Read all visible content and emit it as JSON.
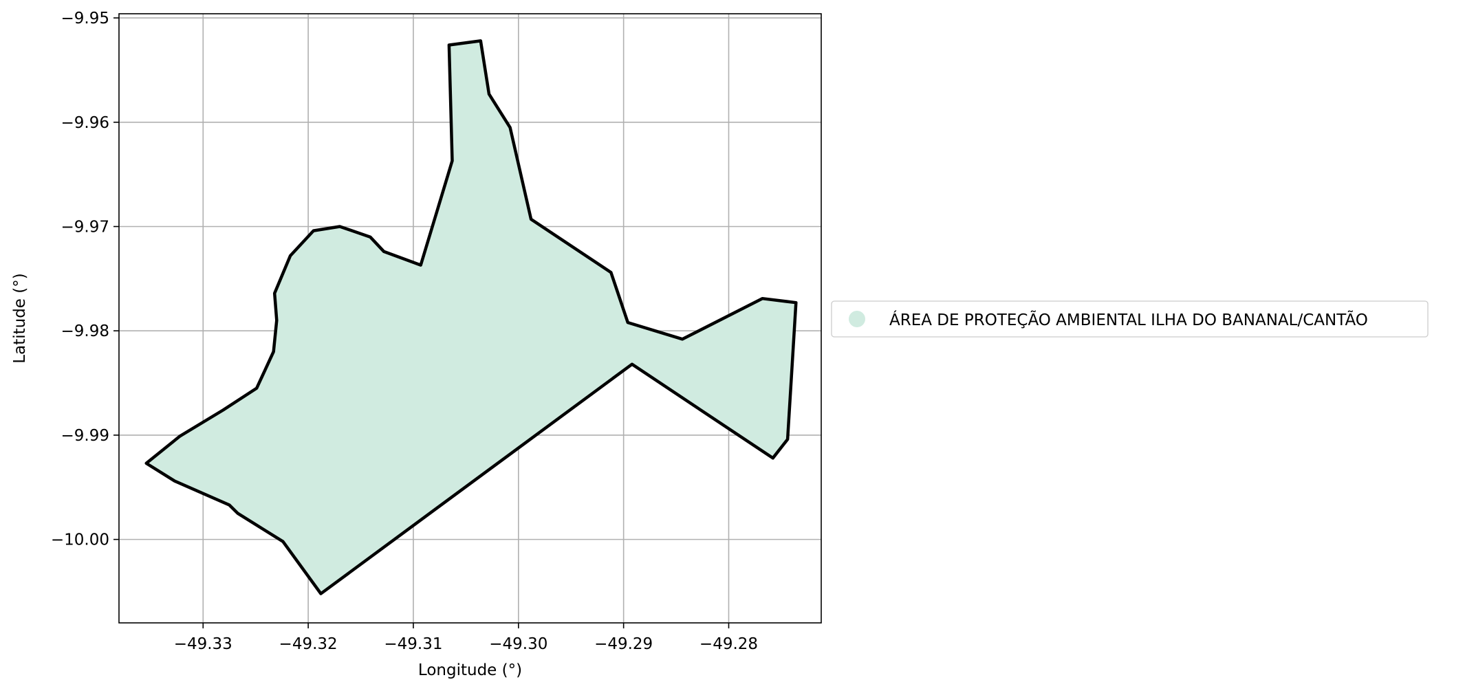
{
  "chart_data": {
    "type": "map",
    "xlabel": "Longitude (°)",
    "ylabel": "Latitude (°)",
    "xlim": [
      -49.338,
      -49.2712
    ],
    "ylim": [
      -10.008,
      -9.9496
    ],
    "xticks": [
      -49.33,
      -49.32,
      -49.31,
      -49.3,
      -49.29,
      -49.28
    ],
    "xtick_labels": [
      "−49.33",
      "−49.32",
      "−49.31",
      "−49.30",
      "−49.29",
      "−49.28"
    ],
    "yticks": [
      -9.95,
      -9.96,
      -9.97,
      -9.98,
      -9.99,
      -10.0
    ],
    "ytick_labels": [
      "−9.95",
      "−9.96",
      "−9.97",
      "−9.98",
      "−9.99",
      "−10.00"
    ],
    "grid": true,
    "legend_position": "right-center",
    "series": [
      {
        "name": "ÁREA DE PROTEÇÃO AMBIENTAL ILHA DO BANANAL/CANTÃO",
        "fill_color": "#d0ebe0",
        "stroke_color": "#000000",
        "polygon": [
          [
            -49.3066,
            -9.9526
          ],
          [
            -49.3036,
            -9.9522
          ],
          [
            -49.3028,
            -9.9573
          ],
          [
            -49.3008,
            -9.9605
          ],
          [
            -49.2988,
            -9.9693
          ],
          [
            -49.2912,
            -9.9744
          ],
          [
            -49.2896,
            -9.9792
          ],
          [
            -49.2844,
            -9.9808
          ],
          [
            -49.2768,
            -9.9769
          ],
          [
            -49.2736,
            -9.9773
          ],
          [
            -49.2744,
            -9.9904
          ],
          [
            -49.2758,
            -9.9922
          ],
          [
            -49.2892,
            -9.9832
          ],
          [
            -49.3188,
            -10.0052
          ],
          [
            -49.3224,
            -10.0002
          ],
          [
            -49.3267,
            -9.9975
          ],
          [
            -49.3275,
            -9.9967
          ],
          [
            -49.3327,
            -9.9944
          ],
          [
            -49.3354,
            -9.9927
          ],
          [
            -49.3322,
            -9.9901
          ],
          [
            -49.3281,
            -9.9876
          ],
          [
            -49.3249,
            -9.9855
          ],
          [
            -49.3233,
            -9.982
          ],
          [
            -49.323,
            -9.979
          ],
          [
            -49.3232,
            -9.9764
          ],
          [
            -49.3217,
            -9.9728
          ],
          [
            -49.3195,
            -9.9704
          ],
          [
            -49.317,
            -9.97
          ],
          [
            -49.3141,
            -9.971
          ],
          [
            -49.3128,
            -9.9724
          ],
          [
            -49.3093,
            -9.9737
          ],
          [
            -49.3063,
            -9.9637
          ]
        ]
      }
    ]
  }
}
